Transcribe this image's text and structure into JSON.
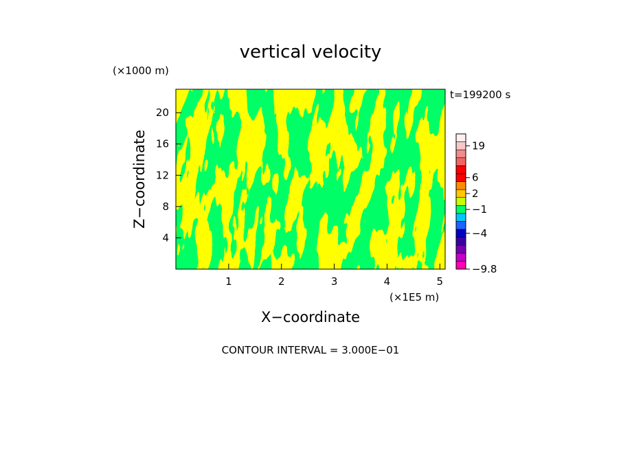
{
  "chart_data": {
    "type": "heatmap",
    "title": "vertical velocity",
    "xlabel": "X−coordinate",
    "ylabel": "Z−coordinate",
    "x_unit": "(×1E5 m)",
    "y_unit": "(×1000 m)",
    "time_label": "t=199200 s",
    "footnote": "CONTOUR INTERVAL = 3.000E−01",
    "xlim": [
      0,
      5.1
    ],
    "ylim": [
      0,
      23
    ],
    "x_ticks": [
      {
        "value": 1,
        "label": "1"
      },
      {
        "value": 2,
        "label": "2"
      },
      {
        "value": 3,
        "label": "3"
      },
      {
        "value": 4,
        "label": "4"
      },
      {
        "value": 5,
        "label": "5"
      }
    ],
    "y_ticks": [
      {
        "value": 4,
        "label": "4"
      },
      {
        "value": 8,
        "label": "8"
      },
      {
        "value": 12,
        "label": "12"
      },
      {
        "value": 16,
        "label": "16"
      },
      {
        "value": 20,
        "label": "20"
      }
    ],
    "field_colors": {
      "low": "#00ff66",
      "high": "#ffff00"
    },
    "colorbar": {
      "bands": [
        "#ff00b4",
        "#c800c8",
        "#7800b4",
        "#3c00a0",
        "#0000c8",
        "#1e64ff",
        "#00c8ff",
        "#00ff66",
        "#c8ff00",
        "#ffc800",
        "#ff8c00",
        "#ff0000",
        "#ff0000",
        "#f06464",
        "#f08c8c",
        "#f8c8c8",
        "#fff0f0"
      ],
      "labels": [
        {
          "value": "19",
          "band": 15.5
        },
        {
          "value": "6",
          "band": 11.5
        },
        {
          "value": "2",
          "band": 9.5
        },
        {
          "value": "−1",
          "band": 7.5
        },
        {
          "value": "−4",
          "band": 4.5
        },
        {
          "value": "−9.8",
          "band": 0
        }
      ]
    }
  }
}
